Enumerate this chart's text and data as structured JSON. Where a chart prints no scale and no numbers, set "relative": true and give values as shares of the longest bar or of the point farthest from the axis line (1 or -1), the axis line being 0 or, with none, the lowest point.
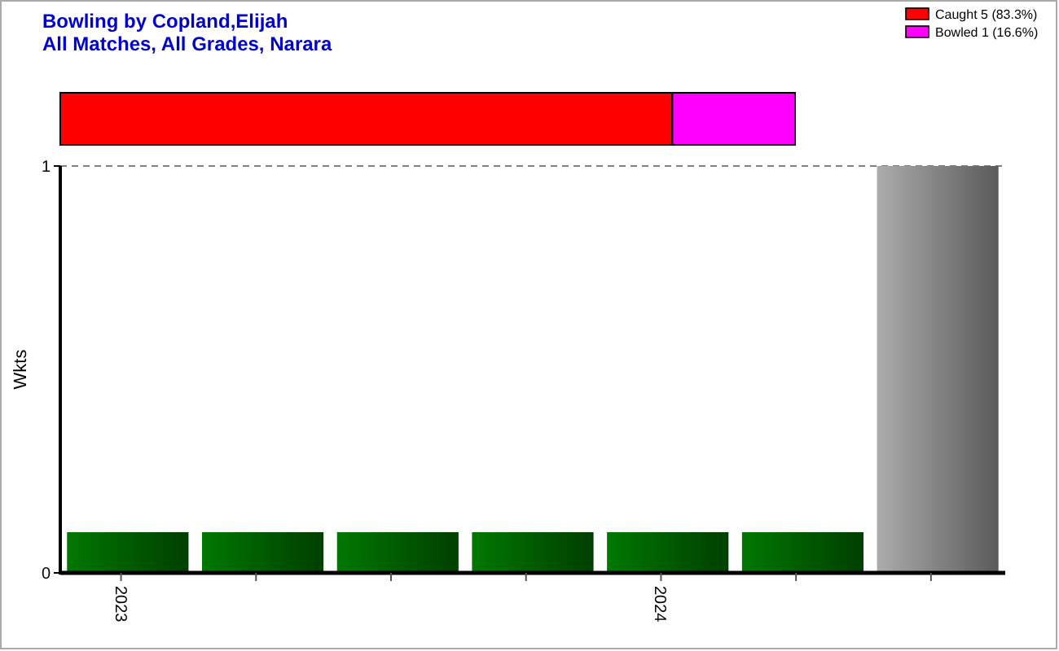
{
  "chart_data": [
    {
      "type": "bar",
      "title": "Bowling by Copland,Elijah",
      "subtitle": "All Matches, All Grades, Narara",
      "orientation": "horizontal",
      "stacked": true,
      "categories": [
        null
      ],
      "relative": true,
      "legend": "top right",
      "series": [
        {
          "name": "Caught 5 (83.3%)",
          "color": "#ff0000",
          "values": [
            0.833
          ]
        },
        {
          "name": "Bowled 1 (16.6%)",
          "color": "#ff00ff",
          "values": [
            0.167
          ]
        }
      ]
    },
    {
      "type": "bar",
      "ylabel": "Wkts",
      "categories": [
        "2023",
        null,
        null,
        null,
        "2024",
        null,
        null
      ],
      "values": [
        0.1,
        0.1,
        0.1,
        0.1,
        0.1,
        0.1,
        1
      ],
      "colors": [
        "#007000",
        "#007000",
        "#007000",
        "#007000",
        "#007000",
        "#007000",
        "#a0a0a0"
      ],
      "ylim": [
        0,
        1
      ],
      "yticks": [
        0,
        1
      ],
      "ref_lines": [
        {
          "axis": "y",
          "value": 1,
          "color": "#808080",
          "line_style": "dashed"
        }
      ]
    }
  ]
}
